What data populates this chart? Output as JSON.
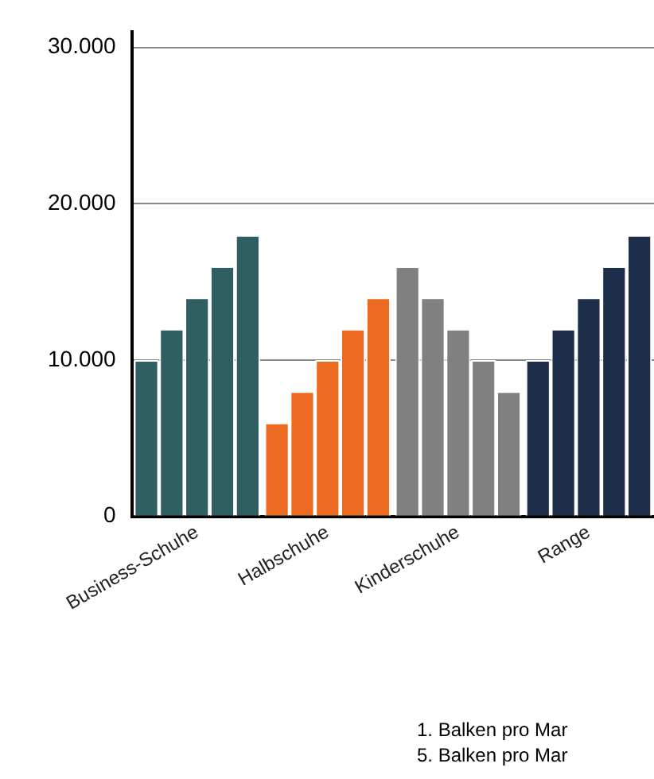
{
  "chart_data": {
    "type": "bar",
    "categories": [
      "Business-Schuhe",
      "Halbschuhe",
      "Kinderschuhe",
      "Range"
    ],
    "series": [
      {
        "colors": [
          "#2f5f60",
          "#ec6a1f",
          "#808080",
          "#1c2e4a"
        ],
        "values": [
          10000,
          6000,
          16000,
          10000
        ]
      },
      {
        "colors": [
          "#2f5f60",
          "#ec6a1f",
          "#808080",
          "#1c2e4a"
        ],
        "values": [
          12000,
          8000,
          14000,
          12000
        ]
      },
      {
        "colors": [
          "#2f5f60",
          "#ec6a1f",
          "#808080",
          "#1c2e4a"
        ],
        "values": [
          14000,
          10000,
          12000,
          14000
        ]
      },
      {
        "colors": [
          "#2f5f60",
          "#ec6a1f",
          "#808080",
          "#1c2e4a"
        ],
        "values": [
          16000,
          12000,
          10000,
          16000
        ]
      },
      {
        "colors": [
          "#2f5f60",
          "#ec6a1f",
          "#808080",
          "#1c2e4a"
        ],
        "values": [
          18000,
          14000,
          8000,
          18000
        ]
      }
    ],
    "ylim": [
      0,
      31000
    ],
    "yticks": [
      {
        "value": 0,
        "label": "0"
      },
      {
        "value": 10000,
        "label": "10.000"
      },
      {
        "value": 20000,
        "label": "20.000"
      },
      {
        "value": 30000,
        "label": "30.000"
      }
    ],
    "grid": "y",
    "legend": false,
    "annotations": [
      "1. Balken pro Mar",
      "5. Balken pro Mar"
    ]
  }
}
